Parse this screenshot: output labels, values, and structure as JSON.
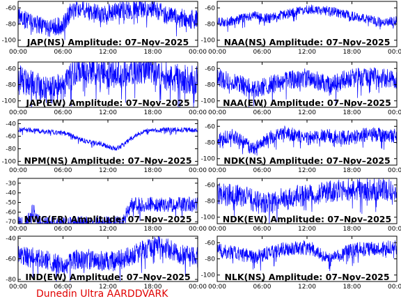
{
  "footer": "Dunedin Ultra AARDDVARK",
  "colors": {
    "trace": "#0000ff",
    "axis": "#000000",
    "footer": "#e00000"
  },
  "chart_data": [
    {
      "type": "line",
      "title": "JAP(NS) Amplitude: 07–Nov–2025",
      "x_ticks": [
        "00:00",
        "06:00",
        "12:00",
        "18:00",
        "00:00"
      ],
      "y_ticks": [
        -100,
        -80,
        -60
      ],
      "ylim": [
        -108,
        -52
      ],
      "series": [
        {
          "x_hours": [
            0,
            1,
            2,
            3,
            4,
            5,
            6,
            7,
            8,
            9,
            10,
            11,
            12,
            13,
            14,
            15,
            16,
            17,
            18,
            19,
            20,
            21,
            22,
            23,
            24
          ],
          "values": [
            -70,
            -75,
            -78,
            -82,
            -85,
            -84,
            -80,
            -65,
            -62,
            -63,
            -66,
            -68,
            -67,
            -65,
            -63,
            -62,
            -62,
            -60,
            -60,
            -65,
            -70,
            -72,
            -73,
            -74,
            -75
          ]
        }
      ]
    },
    {
      "type": "line",
      "title": "NAA(NS) Amplitude: 07–Nov–2025",
      "x_ticks": [
        "00:00",
        "06:00",
        "12:00",
        "18:00",
        "00:00"
      ],
      "y_ticks": [
        -100,
        -80,
        -60
      ],
      "ylim": [
        -108,
        -52
      ],
      "series": [
        {
          "x_hours": [
            0,
            1,
            2,
            3,
            4,
            5,
            6,
            7,
            8,
            9,
            10,
            11,
            12,
            13,
            14,
            15,
            16,
            17,
            18,
            19,
            20,
            21,
            22,
            23,
            24
          ],
          "values": [
            -78,
            -77,
            -76,
            -74,
            -72,
            -70,
            -72,
            -73,
            -70,
            -68,
            -66,
            -64,
            -62,
            -62,
            -63,
            -64,
            -66,
            -68,
            -70,
            -72,
            -74,
            -76,
            -78,
            -77,
            -76
          ]
        }
      ]
    },
    {
      "type": "line",
      "title": "JAP(EW) Amplitude: 07–Nov–2025",
      "x_ticks": [
        "00:00",
        "06:00",
        "12:00",
        "18:00",
        "00:00"
      ],
      "y_ticks": [
        -100,
        -80,
        -60
      ],
      "ylim": [
        -108,
        -52
      ],
      "series": [
        {
          "x_hours": [
            0,
            1,
            2,
            3,
            4,
            5,
            6,
            7,
            8,
            9,
            10,
            11,
            12,
            13,
            14,
            15,
            16,
            17,
            18,
            19,
            20,
            21,
            22,
            23,
            24
          ],
          "values": [
            -72,
            -76,
            -80,
            -84,
            -88,
            -86,
            -82,
            -70,
            -64,
            -60,
            -62,
            -66,
            -68,
            -67,
            -65,
            -63,
            -62,
            -61,
            -62,
            -66,
            -70,
            -72,
            -73,
            -74,
            -75
          ]
        }
      ]
    },
    {
      "type": "line",
      "title": "NAA(EW) Amplitude: 07–Nov–2025",
      "x_ticks": [
        "00:00",
        "06:00",
        "12:00",
        "18:00",
        "00:00"
      ],
      "y_ticks": [
        -100,
        -80,
        -60
      ],
      "ylim": [
        -108,
        -52
      ],
      "series": [
        {
          "x_hours": [
            0,
            1,
            2,
            3,
            4,
            5,
            6,
            7,
            8,
            9,
            10,
            11,
            12,
            13,
            14,
            15,
            16,
            17,
            18,
            19,
            20,
            21,
            22,
            23,
            24
          ],
          "values": [
            -72,
            -74,
            -76,
            -78,
            -82,
            -86,
            -84,
            -80,
            -78,
            -76,
            -74,
            -72,
            -72,
            -74,
            -78,
            -82,
            -78,
            -74,
            -72,
            -70,
            -70,
            -71,
            -72,
            -72,
            -73
          ]
        }
      ]
    },
    {
      "type": "line",
      "title": "NPM(NS) Amplitude: 07–Nov–2025",
      "x_ticks": [
        "00:00",
        "06:00",
        "12:00",
        "18:00",
        "00:00"
      ],
      "y_ticks": [
        -100,
        -80,
        -60,
        -40
      ],
      "ylim": [
        -106,
        -34
      ],
      "series": [
        {
          "x_hours": [
            0,
            1,
            2,
            3,
            4,
            5,
            6,
            7,
            8,
            9,
            10,
            11,
            12,
            13,
            14,
            15,
            16,
            17,
            18,
            19,
            20,
            21,
            22,
            23,
            24
          ],
          "values": [
            -50,
            -50,
            -51,
            -52,
            -53,
            -54,
            -55,
            -58,
            -64,
            -68,
            -70,
            -72,
            -76,
            -80,
            -74,
            -64,
            -56,
            -52,
            -51,
            -50,
            -50,
            -50,
            -50,
            -50,
            -50
          ]
        }
      ]
    },
    {
      "type": "line",
      "title": "NDK(NS) Amplitude: 07–Nov–2025",
      "x_ticks": [
        "00:00",
        "06:00",
        "12:00",
        "18:00",
        "00:00"
      ],
      "y_ticks": [
        -100,
        -80,
        -60
      ],
      "ylim": [
        -108,
        -52
      ],
      "series": [
        {
          "x_hours": [
            0,
            1,
            2,
            3,
            4,
            5,
            6,
            7,
            8,
            9,
            10,
            11,
            12,
            13,
            14,
            15,
            16,
            17,
            18,
            19,
            20,
            21,
            22,
            23,
            24
          ],
          "values": [
            -76,
            -74,
            -72,
            -75,
            -84,
            -88,
            -80,
            -74,
            -70,
            -68,
            -70,
            -73,
            -75,
            -74,
            -72,
            -72,
            -73,
            -74,
            -74,
            -72,
            -70,
            -70,
            -71,
            -72,
            -72
          ]
        }
      ]
    },
    {
      "type": "line",
      "title": "NWC(FR) Amplitude: 07–Nov–2025",
      "x_ticks": [
        "00:00",
        "06:00",
        "12:00",
        "18:00",
        "00:00"
      ],
      "y_ticks": [
        -70,
        -60,
        -50,
        -40,
        -30
      ],
      "ylim": [
        -72,
        -25
      ],
      "series": [
        {
          "x_hours": [
            0,
            1,
            2,
            3,
            4,
            5,
            6,
            7,
            8,
            9,
            10,
            11,
            12,
            13,
            14,
            15,
            16,
            17,
            18,
            19,
            20,
            21,
            22,
            23,
            24
          ],
          "values": [
            -72,
            -72,
            -58,
            -72,
            -72,
            -72,
            -72,
            -72,
            -72,
            -72,
            -72,
            -72,
            -72,
            -72,
            -72,
            -52,
            -52,
            -52,
            -52,
            -52,
            -52,
            -52,
            -52,
            -52,
            -52
          ]
        }
      ]
    },
    {
      "type": "line",
      "title": "NDK(EW) Amplitude: 07–Nov–2025",
      "x_ticks": [
        "00:00",
        "06:00",
        "12:00",
        "18:00",
        "00:00"
      ],
      "y_ticks": [
        -100,
        -80,
        -60
      ],
      "ylim": [
        -108,
        -52
      ],
      "series": [
        {
          "x_hours": [
            0,
            1,
            2,
            3,
            4,
            5,
            6,
            7,
            8,
            9,
            10,
            11,
            12,
            13,
            14,
            15,
            16,
            17,
            18,
            19,
            20,
            21,
            22,
            23,
            24
          ],
          "values": [
            -70,
            -72,
            -73,
            -74,
            -76,
            -80,
            -84,
            -82,
            -78,
            -78,
            -76,
            -74,
            -72,
            -72,
            -70,
            -68,
            -67,
            -66,
            -66,
            -66,
            -66,
            -66,
            -66,
            -66,
            -66
          ]
        }
      ]
    },
    {
      "type": "line",
      "title": "IND(EW) Amplitude: 07–Nov–2025",
      "x_ticks": [
        "00:00",
        "06:00",
        "12:00",
        "18:00",
        "00:00"
      ],
      "y_ticks": [
        -80,
        -60,
        -40
      ],
      "ylim": [
        -82,
        -38
      ],
      "series": [
        {
          "x_hours": [
            0,
            1,
            2,
            3,
            4,
            5,
            6,
            7,
            8,
            9,
            10,
            11,
            12,
            13,
            14,
            15,
            16,
            17,
            18,
            19,
            20,
            21,
            22,
            23,
            24
          ],
          "values": [
            -56,
            -57,
            -58,
            -60,
            -62,
            -64,
            -68,
            -64,
            -60,
            -60,
            -61,
            -62,
            -63,
            -62,
            -60,
            -58,
            -54,
            -50,
            -48,
            -48,
            -50,
            -53,
            -56,
            -58,
            -58
          ]
        }
      ]
    },
    {
      "type": "line",
      "title": "NLK(NS) Amplitude: 07–Nov–2025",
      "x_ticks": [
        "00:00",
        "06:00",
        "12:00",
        "18:00",
        "00:00"
      ],
      "y_ticks": [
        -100,
        -80,
        -60
      ],
      "ylim": [
        -108,
        -52
      ],
      "series": [
        {
          "x_hours": [
            0,
            1,
            2,
            3,
            4,
            5,
            6,
            7,
            8,
            9,
            10,
            11,
            12,
            13,
            14,
            15,
            16,
            17,
            18,
            19,
            20,
            21,
            22,
            23,
            24
          ],
          "values": [
            -70,
            -71,
            -72,
            -74,
            -76,
            -78,
            -76,
            -72,
            -70,
            -68,
            -67,
            -66,
            -66,
            -68,
            -74,
            -82,
            -76,
            -72,
            -70,
            -68,
            -68,
            -67,
            -66,
            -66,
            -66
          ]
        }
      ]
    }
  ]
}
